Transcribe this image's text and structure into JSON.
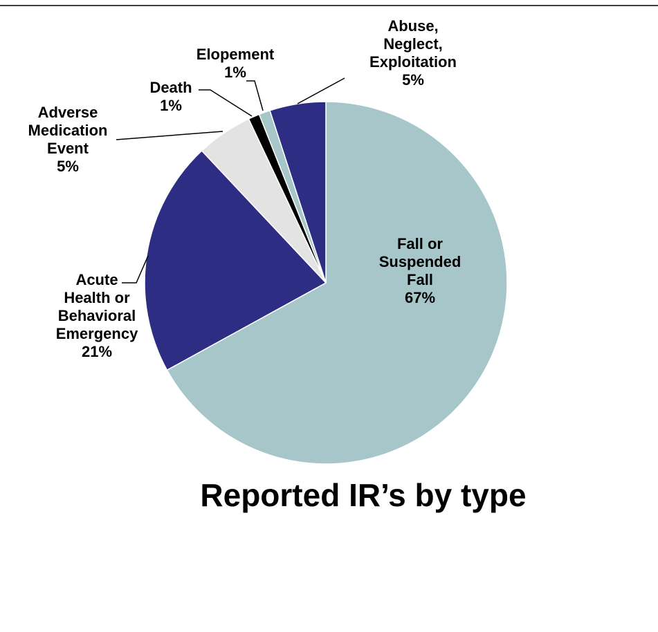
{
  "chart_data": {
    "type": "pie",
    "title": "Reported IR’s by type",
    "start_angle_deg": 0,
    "direction": "clockwise",
    "slices": [
      {
        "name": "Fall or Suspended Fall",
        "value": 67,
        "label_lines": [
          "Fall or",
          "Suspended",
          "Fall",
          "67%"
        ],
        "color": "#a6c6ca",
        "label_inside": true
      },
      {
        "name": "Acute Health or Behavioral Emergency",
        "value": 21,
        "label_lines": [
          "Acute",
          "Health or",
          "Behavioral",
          "Emergency",
          "21%"
        ],
        "color": "#2e2d84",
        "label_inside": false
      },
      {
        "name": "Adverse Medication Event",
        "value": 5,
        "label_lines": [
          "Adverse",
          "Medication",
          "Event",
          "5%"
        ],
        "color": "#e3e3e3",
        "label_inside": false
      },
      {
        "name": "Death",
        "value": 1,
        "label_lines": [
          "Death",
          "1%"
        ],
        "color": "#000000",
        "label_inside": false
      },
      {
        "name": "Elopement",
        "value": 1,
        "label_lines": [
          "Elopement",
          "1%"
        ],
        "color": "#a6c6ca",
        "label_inside": false
      },
      {
        "name": "Abuse, Neglect, Exploitation",
        "value": 5,
        "label_lines": [
          "Abuse,",
          "Neglect,",
          "Exploitation",
          "5%"
        ],
        "color": "#2e2d84",
        "label_inside": false
      }
    ],
    "legend": "none"
  },
  "colors": {
    "background": "#ffffff",
    "frame_line": "#000000",
    "slice_border": "#ffffff",
    "leader_line": "#000000"
  }
}
